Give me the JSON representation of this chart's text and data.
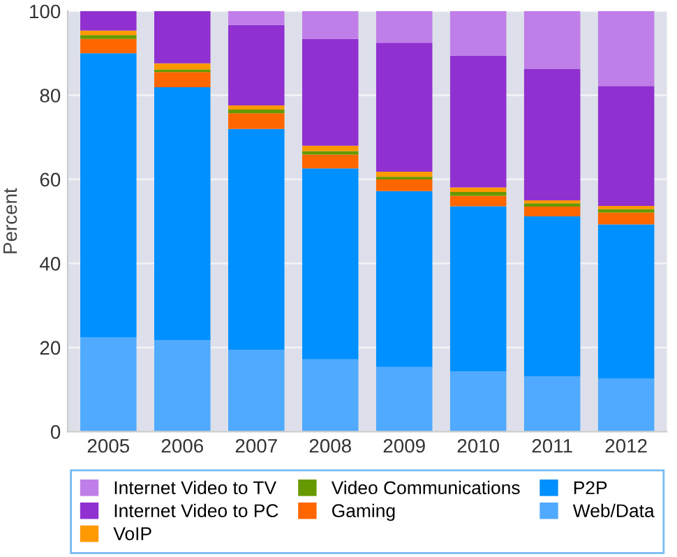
{
  "chart_data": {
    "type": "bar",
    "stacked": true,
    "ylabel": "Percent",
    "categories": [
      "2005",
      "2006",
      "2007",
      "2008",
      "2009",
      "2010",
      "2011",
      "2012"
    ],
    "ylim": [
      0,
      100
    ],
    "yticks": [
      0,
      20,
      40,
      60,
      80,
      100
    ],
    "grid": "y",
    "legend": "bottom",
    "series": [
      {
        "name": "Web/Data",
        "color": "#50aaff",
        "values": [
          22.5,
          21.8,
          19.5,
          17.2,
          15.4,
          14.3,
          13.2,
          12.6
        ]
      },
      {
        "name": "P2P",
        "color": "#0090ff",
        "values": [
          67.5,
          60.1,
          52.5,
          45.4,
          41.8,
          39.3,
          38.0,
          36.7
        ]
      },
      {
        "name": "Gaming",
        "color": "#ff6600",
        "values": [
          3.4,
          3.6,
          3.7,
          3.3,
          2.8,
          2.5,
          2.3,
          2.8
        ]
      },
      {
        "name": "Video Communications",
        "color": "#669900",
        "values": [
          0.9,
          0.6,
          0.9,
          0.8,
          0.6,
          0.9,
          0.8,
          0.8
        ]
      },
      {
        "name": "VoIP",
        "color": "#ff9900",
        "values": [
          1.1,
          1.5,
          1.0,
          1.3,
          1.2,
          1.1,
          0.7,
          0.8
        ]
      },
      {
        "name": "Internet Video to PC",
        "color": "#9030d0",
        "values": [
          4.6,
          12.4,
          19.1,
          25.4,
          30.7,
          31.3,
          31.3,
          28.5
        ]
      },
      {
        "name": "Internet Video to TV",
        "color": "#c07ee8",
        "values": [
          0,
          0,
          3.3,
          6.6,
          7.5,
          10.6,
          13.7,
          17.8
        ]
      }
    ]
  }
}
